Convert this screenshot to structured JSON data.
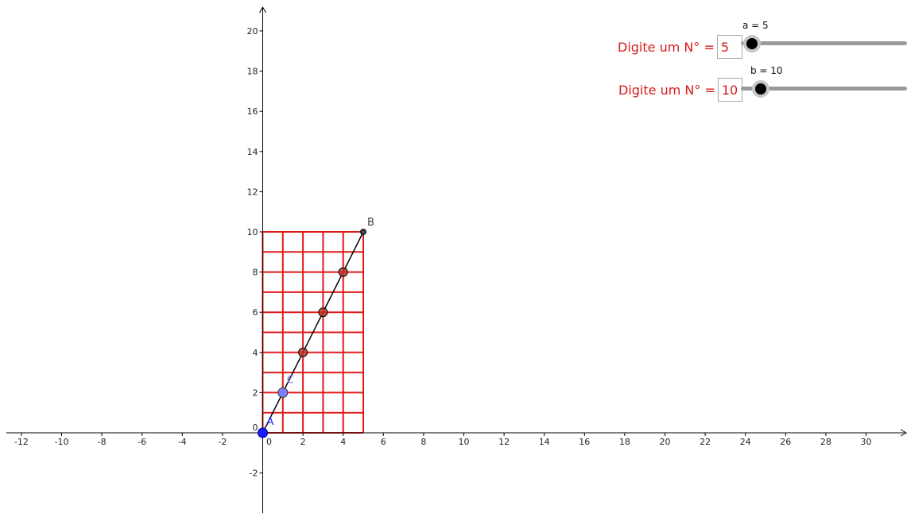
{
  "inputs": [
    {
      "caption": "Digite um N° =",
      "value": "5"
    },
    {
      "caption": "Digite um N° =",
      "value": "10"
    }
  ],
  "sliders": [
    {
      "label": "a = 5",
      "value": 5
    },
    {
      "label": "b = 10",
      "value": 10
    }
  ],
  "points": {
    "A": {
      "label": "A",
      "x": 0,
      "y": 0,
      "color": "#1a1aff"
    },
    "B": {
      "label": "B",
      "x": 5,
      "y": 10,
      "color": "#444444"
    },
    "C": {
      "label": "C",
      "x": 1,
      "y": 2,
      "color": "#8080ff"
    },
    "intersections": [
      [
        2,
        4
      ],
      [
        3,
        6
      ],
      [
        4,
        8
      ]
    ]
  },
  "grid": {
    "columns": 5,
    "rows": 10,
    "color": "#e01a1a"
  },
  "axes": {
    "x_ticks": [
      "-12",
      "-10",
      "-8",
      "-6",
      "-4",
      "-2",
      "0",
      "2",
      "4",
      "6",
      "8",
      "10",
      "12",
      "14",
      "16",
      "18",
      "20",
      "22",
      "24",
      "26",
      "28",
      "30"
    ],
    "y_ticks": [
      "-2",
      "0",
      "2",
      "4",
      "6",
      "8",
      "10",
      "12",
      "14",
      "16",
      "18",
      "20"
    ]
  },
  "colors": {
    "accent": "#d81b1b",
    "segment": "#000000",
    "intersection": "#c0392b"
  }
}
